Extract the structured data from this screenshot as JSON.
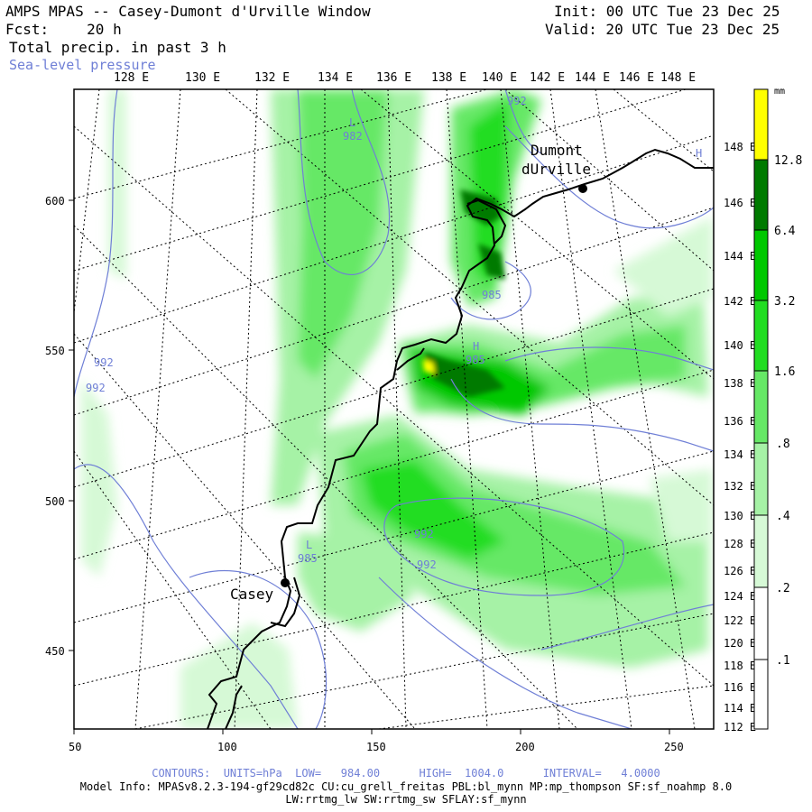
{
  "header": {
    "title": "AMPS MPAS -- Casey-Dumont d'Urville Window",
    "fcst_label": "Fcst:",
    "fcst_value": "20 h",
    "field": "Total precip. in past 3 h",
    "overlay": "Sea-level pressure",
    "init": "Init: 00 UTC Tue 23 Dec 25",
    "valid": "Valid: 20 UTC Tue 23 Dec 25"
  },
  "axes": {
    "x_ticks": [
      "50",
      "100",
      "150",
      "200",
      "250"
    ],
    "y_ticks": [
      "600",
      "550",
      "500",
      "450"
    ],
    "top_lon_labels": [
      "128 E",
      "130 E",
      "132 E",
      "134 E",
      "136 E",
      "138 E",
      "140 E",
      "142 E",
      "144 E",
      "146 E",
      "148 E"
    ],
    "right_lon_labels": [
      "148 E",
      "146 E",
      "144 E",
      "142 E",
      "140 E",
      "138 E",
      "136 E",
      "134 E",
      "132 E",
      "130 E",
      "128 E",
      "126 E",
      "124 E",
      "122 E",
      "120 E",
      "118 E",
      "116 E",
      "114 E",
      "112 E"
    ]
  },
  "places": [
    {
      "name": "Casey",
      "label": "Casey"
    },
    {
      "name": "Dumont",
      "label_line1": "Dumont",
      "label_line2": "dUrville"
    }
  ],
  "pressure_labels": [
    "982",
    "992",
    "992",
    "992",
    "985",
    "985",
    "992",
    "992",
    "985"
  ],
  "pressure_marks": [
    "L",
    "H",
    "L",
    "H"
  ],
  "colorbar": {
    "unit": "mm",
    "levels": [
      "12.8",
      "6.4",
      "3.2",
      "1.6",
      ".8",
      ".4",
      ".2",
      ".1"
    ],
    "colors": [
      "#ffff00",
      "#007a00",
      "#00c800",
      "#22dd22",
      "#66e866",
      "#a6f2a6",
      "#d6f9d6",
      "#ffffff"
    ]
  },
  "footer": {
    "contours": "CONTOURS:  UNITS=hPa  LOW=   984.00      HIGH=  1004.0      INTERVAL=   4.0000",
    "model_info_1": "Model Info: MPASv8.2.3-194-gf29cd82c CU:cu_grell_freitas PBL:bl_mynn MP:mp_thompson SF:sf_noahmp 8.0",
    "model_info_2": "LW:rrtmg_lw SW:rrtmg_sw SFLAY:sf_mynn"
  }
}
